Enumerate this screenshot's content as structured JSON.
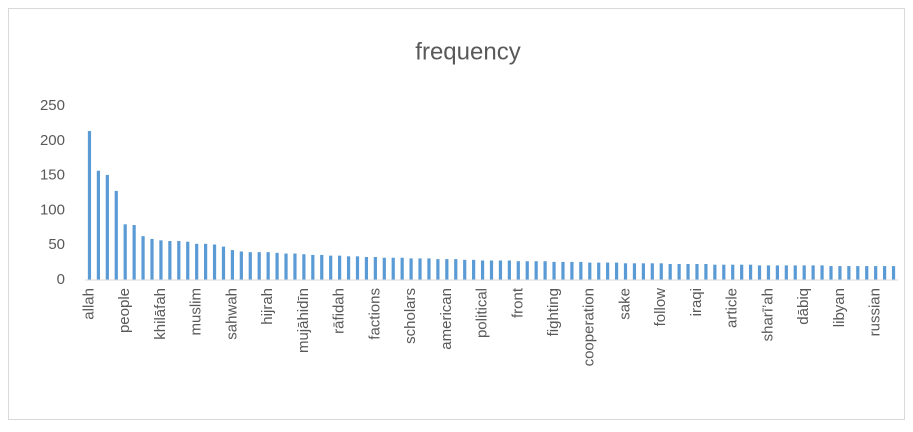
{
  "chart_data": {
    "type": "bar",
    "title": "frequency",
    "categories": [
      "allah",
      null,
      null,
      null,
      "people",
      null,
      null,
      null,
      "khilāfah",
      null,
      null,
      null,
      "muslim",
      null,
      null,
      null,
      "sahwah",
      null,
      null,
      null,
      "hijrah",
      null,
      null,
      null,
      "mujāhidīn",
      null,
      null,
      null,
      "rāfidah",
      null,
      null,
      null,
      "factions",
      null,
      null,
      null,
      "scholars",
      null,
      null,
      null,
      "american",
      null,
      null,
      null,
      "political",
      null,
      null,
      null,
      "front",
      null,
      null,
      null,
      "fighting",
      null,
      null,
      null,
      "cooperation",
      null,
      null,
      null,
      "sake",
      null,
      null,
      null,
      "follow",
      null,
      null,
      null,
      "iraqi",
      null,
      null,
      null,
      "article",
      null,
      null,
      null,
      "sharī’ah",
      null,
      null,
      null,
      "dābiq",
      null,
      null,
      null,
      "libyan",
      null,
      null,
      null,
      "russian",
      null,
      null
    ],
    "values": [
      214,
      157,
      151,
      128,
      80,
      79,
      63,
      59,
      57,
      56,
      56,
      55,
      52,
      52,
      51,
      48,
      43,
      41,
      40,
      40,
      40,
      39,
      38,
      38,
      37,
      36,
      36,
      35,
      35,
      34,
      34,
      33,
      33,
      32,
      32,
      32,
      31,
      31,
      31,
      30,
      30,
      30,
      29,
      29,
      28,
      28,
      28,
      28,
      27,
      27,
      27,
      27,
      26,
      26,
      26,
      26,
      25,
      25,
      25,
      25,
      24,
      24,
      24,
      24,
      24,
      23,
      23,
      23,
      23,
      23,
      22,
      22,
      22,
      22,
      22,
      21,
      21,
      21,
      21,
      21,
      21,
      21,
      21,
      20,
      20,
      20,
      20,
      20,
      20,
      20,
      20
    ],
    "color": "#5b9bd5",
    "ylim": [
      0,
      250
    ],
    "yticks": [
      0,
      50,
      100,
      150,
      200,
      250
    ],
    "grid": false
  }
}
